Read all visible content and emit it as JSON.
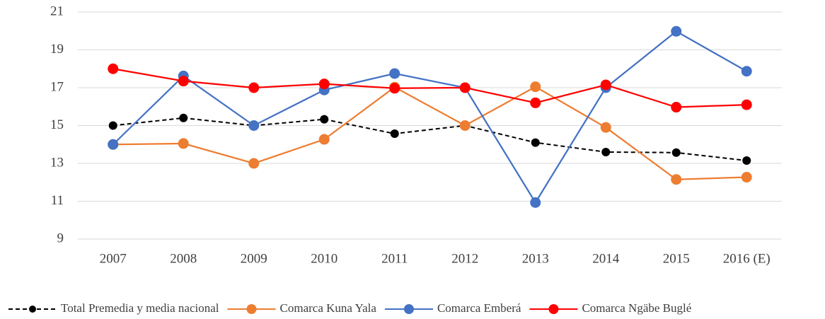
{
  "chart_data": {
    "type": "line",
    "categories": [
      "2007",
      "2008",
      "2009",
      "2010",
      "2011",
      "2012",
      "2013",
      "2014",
      "2015",
      "2016 (E)"
    ],
    "ylim": [
      9,
      21
    ],
    "yticks": [
      9,
      11,
      13,
      15,
      17,
      19,
      21
    ],
    "grid": true,
    "legend": "bottom",
    "series": [
      {
        "name": "Total Premedia y media nacional",
        "color": "#000000",
        "line_style": "dashed",
        "values": [
          15,
          15.4,
          15,
          15.33,
          14.57,
          15,
          14.1,
          13.6,
          13.57,
          13.15
        ]
      },
      {
        "name": "Comarca Kuna Yala",
        "color": "#ed7d31",
        "line_style": "solid",
        "values": [
          14,
          14.05,
          13,
          14.27,
          17.03,
          15,
          17.05,
          14.9,
          12.15,
          12.27
        ]
      },
      {
        "name": "Comarca Emberá",
        "color": "#4472c4",
        "line_style": "solid",
        "values": [
          14,
          17.62,
          15,
          16.88,
          17.75,
          17,
          10.93,
          17,
          19.98,
          17.87
        ]
      },
      {
        "name": "Comarca Ngäbe Buglé",
        "color": "#ff0000",
        "line_style": "solid",
        "values": [
          18,
          17.35,
          17,
          17.2,
          16.97,
          17,
          16.2,
          17.15,
          15.97,
          16.1
        ]
      }
    ]
  }
}
